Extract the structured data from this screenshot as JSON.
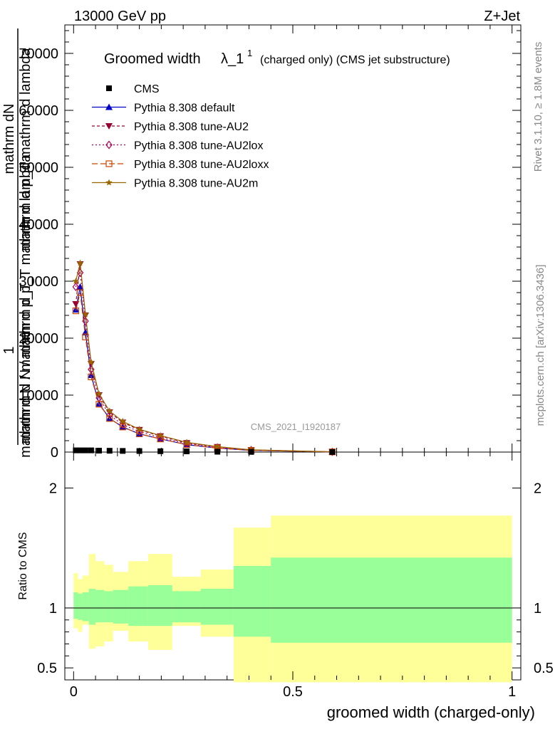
{
  "header": {
    "energy": "13000 GeV pp",
    "process": "Z+Jet"
  },
  "side_labels": {
    "rivet": "Rivet 3.1.10, ≥ 1.8M events",
    "mcplots": "mcplots.cern.ch [arXiv:1306.3436]"
  },
  "watermark": "CMS_2021_I1920187",
  "plot_title": {
    "main": "Groomed width",
    "lambda": "λ_1",
    "sup": "1",
    "note": "(charged only) (CMS jet substructure)"
  },
  "ylabel_main": {
    "frac_num_line1": "mathrm dN",
    "frac_num_line2": "1",
    "frac_den_line1": "mathrm d p_T mathrm d lambda",
    "frac_den_line2": "mathrm d N / mathrm d p_T",
    "overlap1": "mathrm d N / mathrm d p_T mathrm d lambda",
    "overlap2": "mathrm d N / mathrm d p_T mathrm d lambda"
  },
  "ylabel_ratio": "Ratio to CMS",
  "xlabel": "groomed width (charged-only)",
  "top_ticks": [
    "0",
    "10000",
    "20000",
    "30000",
    "40000",
    "50000",
    "60000",
    "70000"
  ],
  "ratio_ticks": [
    "0.5",
    "1",
    "2"
  ],
  "x_ticks": [
    "0",
    "0.5",
    "1"
  ],
  "colors": {
    "cms": "#000000",
    "default": "#0000cc",
    "au2": "#990033",
    "au2lox": "#aa0055",
    "au2loxx": "#cc4400",
    "au2m": "#996600",
    "band_inner": "#99ff99",
    "band_outer": "#ffff99"
  },
  "chart_data": {
    "type": "line",
    "xlim": [
      -0.02,
      1.02
    ],
    "ylim": [
      0,
      75000
    ],
    "ratio_ylim": [
      0.4,
      2.3
    ],
    "legend_position": "top-left",
    "legend": [
      {
        "name": "CMS",
        "marker": "square",
        "color": "#000000"
      },
      {
        "name": "Pythia 8.308 default",
        "marker": "triangle-up",
        "color": "#0000cc"
      },
      {
        "name": "Pythia 8.308 tune-AU2",
        "marker": "triangle-down",
        "color": "#990033"
      },
      {
        "name": "Pythia 8.308 tune-AU2lox",
        "marker": "diamond",
        "color": "#aa0055"
      },
      {
        "name": "Pythia 8.308 tune-AU2loxx",
        "marker": "square-open",
        "color": "#cc4400"
      },
      {
        "name": "Pythia 8.308 tune-AU2m",
        "marker": "star",
        "color": "#996600"
      }
    ],
    "x": [
      0.005,
      0.015,
      0.027,
      0.04,
      0.058,
      0.082,
      0.112,
      0.15,
      0.198,
      0.258,
      0.328,
      0.405,
      0.59
    ],
    "cms_values": [
      300,
      300,
      300,
      300,
      250,
      230,
      200,
      180,
      150,
      120,
      60,
      30,
      5
    ],
    "series": [
      {
        "name": "Pythia 8.308 default",
        "values": [
          25000,
          29000,
          21000,
          13500,
          8500,
          5900,
          4400,
          3200,
          2300,
          1300,
          700,
          300,
          30
        ]
      },
      {
        "name": "Pythia 8.308 tune-AU2",
        "values": [
          26000,
          33000,
          24000,
          15500,
          10000,
          7000,
          5200,
          3900,
          2800,
          1600,
          900,
          380,
          40
        ]
      },
      {
        "name": "Pythia 8.308 tune-AU2lox",
        "values": [
          29000,
          31500,
          23000,
          14500,
          9500,
          6500,
          4800,
          3600,
          2500,
          1500,
          800,
          350,
          35
        ]
      },
      {
        "name": "Pythia 8.308 tune-AU2loxx",
        "values": [
          24800,
          28000,
          20200,
          13200,
          8400,
          5900,
          4400,
          3200,
          2300,
          1300,
          700,
          300,
          30
        ]
      },
      {
        "name": "Pythia 8.308 tune-AU2m",
        "values": [
          30000,
          33200,
          24200,
          15800,
          10200,
          7200,
          5400,
          4000,
          2900,
          1700,
          950,
          400,
          45
        ]
      }
    ],
    "ratio_bins": [
      {
        "x0": 0.0,
        "x1": 0.01,
        "inner": [
          0.91,
          1.13
        ],
        "outer": [
          0.83,
          1.29
        ]
      },
      {
        "x0": 0.01,
        "x1": 0.02,
        "inner": [
          0.9,
          1.12
        ],
        "outer": [
          0.8,
          1.24
        ]
      },
      {
        "x0": 0.02,
        "x1": 0.035,
        "inner": [
          0.89,
          1.13
        ],
        "outer": [
          0.86,
          1.27
        ]
      },
      {
        "x0": 0.035,
        "x1": 0.05,
        "inner": [
          0.86,
          1.16
        ],
        "outer": [
          0.66,
          1.45
        ]
      },
      {
        "x0": 0.05,
        "x1": 0.07,
        "inner": [
          0.88,
          1.15
        ],
        "outer": [
          0.68,
          1.39
        ]
      },
      {
        "x0": 0.07,
        "x1": 0.09,
        "inner": [
          0.88,
          1.14
        ],
        "outer": [
          0.72,
          1.36
        ]
      },
      {
        "x0": 0.09,
        "x1": 0.125,
        "inner": [
          0.87,
          1.15
        ],
        "outer": [
          0.81,
          1.3
        ]
      },
      {
        "x0": 0.125,
        "x1": 0.17,
        "inner": [
          0.85,
          1.18
        ],
        "outer": [
          0.72,
          1.39
        ]
      },
      {
        "x0": 0.17,
        "x1": 0.225,
        "inner": [
          0.85,
          1.19
        ],
        "outer": [
          0.65,
          1.45
        ]
      },
      {
        "x0": 0.225,
        "x1": 0.29,
        "inner": [
          0.88,
          1.14
        ],
        "outer": [
          0.85,
          1.26
        ]
      },
      {
        "x0": 0.29,
        "x1": 0.365,
        "inner": [
          0.86,
          1.16
        ],
        "outer": [
          0.76,
          1.32
        ]
      },
      {
        "x0": 0.365,
        "x1": 0.45,
        "inner": [
          0.76,
          1.35
        ],
        "outer": [
          0.38,
          1.67
        ]
      },
      {
        "x0": 0.45,
        "x1": 1.0,
        "inner": [
          0.71,
          1.42
        ],
        "outer": [
          0.38,
          1.77
        ]
      }
    ]
  }
}
